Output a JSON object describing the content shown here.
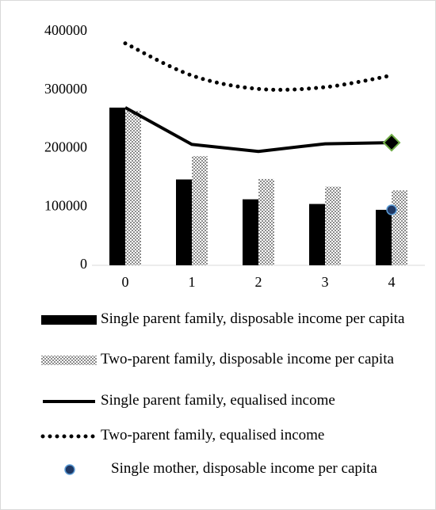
{
  "chart_data": {
    "type": "bar",
    "categories": [
      "0",
      "1",
      "2",
      "3",
      "4"
    ],
    "ylim": [
      0,
      400000
    ],
    "yticks": [
      0,
      100000,
      200000,
      300000,
      400000
    ],
    "series": [
      {
        "name": "Single parent family, disposable income per capita",
        "type": "bar",
        "pattern": "solid",
        "color": "#000000",
        "values": [
          270000,
          147000,
          113000,
          105000,
          95000
        ]
      },
      {
        "name": "Two-parent family, disposable income per capita",
        "type": "bar",
        "pattern": "dotted",
        "color": "#000000",
        "values": [
          265000,
          187000,
          148000,
          135000,
          128000
        ]
      },
      {
        "name": "Single parent family, equalised income",
        "type": "line",
        "line_style": "solid",
        "color": "#000000",
        "values": [
          270000,
          207000,
          195000,
          208000,
          210000
        ]
      },
      {
        "name": "Two-parent family, equalised income",
        "type": "line",
        "line_style": "dotted",
        "smooth": true,
        "color": "#000000",
        "values": [
          380000,
          325000,
          302000,
          305000,
          325000
        ]
      },
      {
        "name": "Single mother, disposable income per capita",
        "type": "scatter",
        "marker": "circle",
        "color": "#1f3864",
        "values": [
          null,
          null,
          null,
          null,
          95000
        ]
      },
      {
        "type": "scatter",
        "marker": "diamond",
        "color": "#70ad47",
        "values": [
          null,
          null,
          null,
          null,
          210000
        ]
      }
    ]
  }
}
